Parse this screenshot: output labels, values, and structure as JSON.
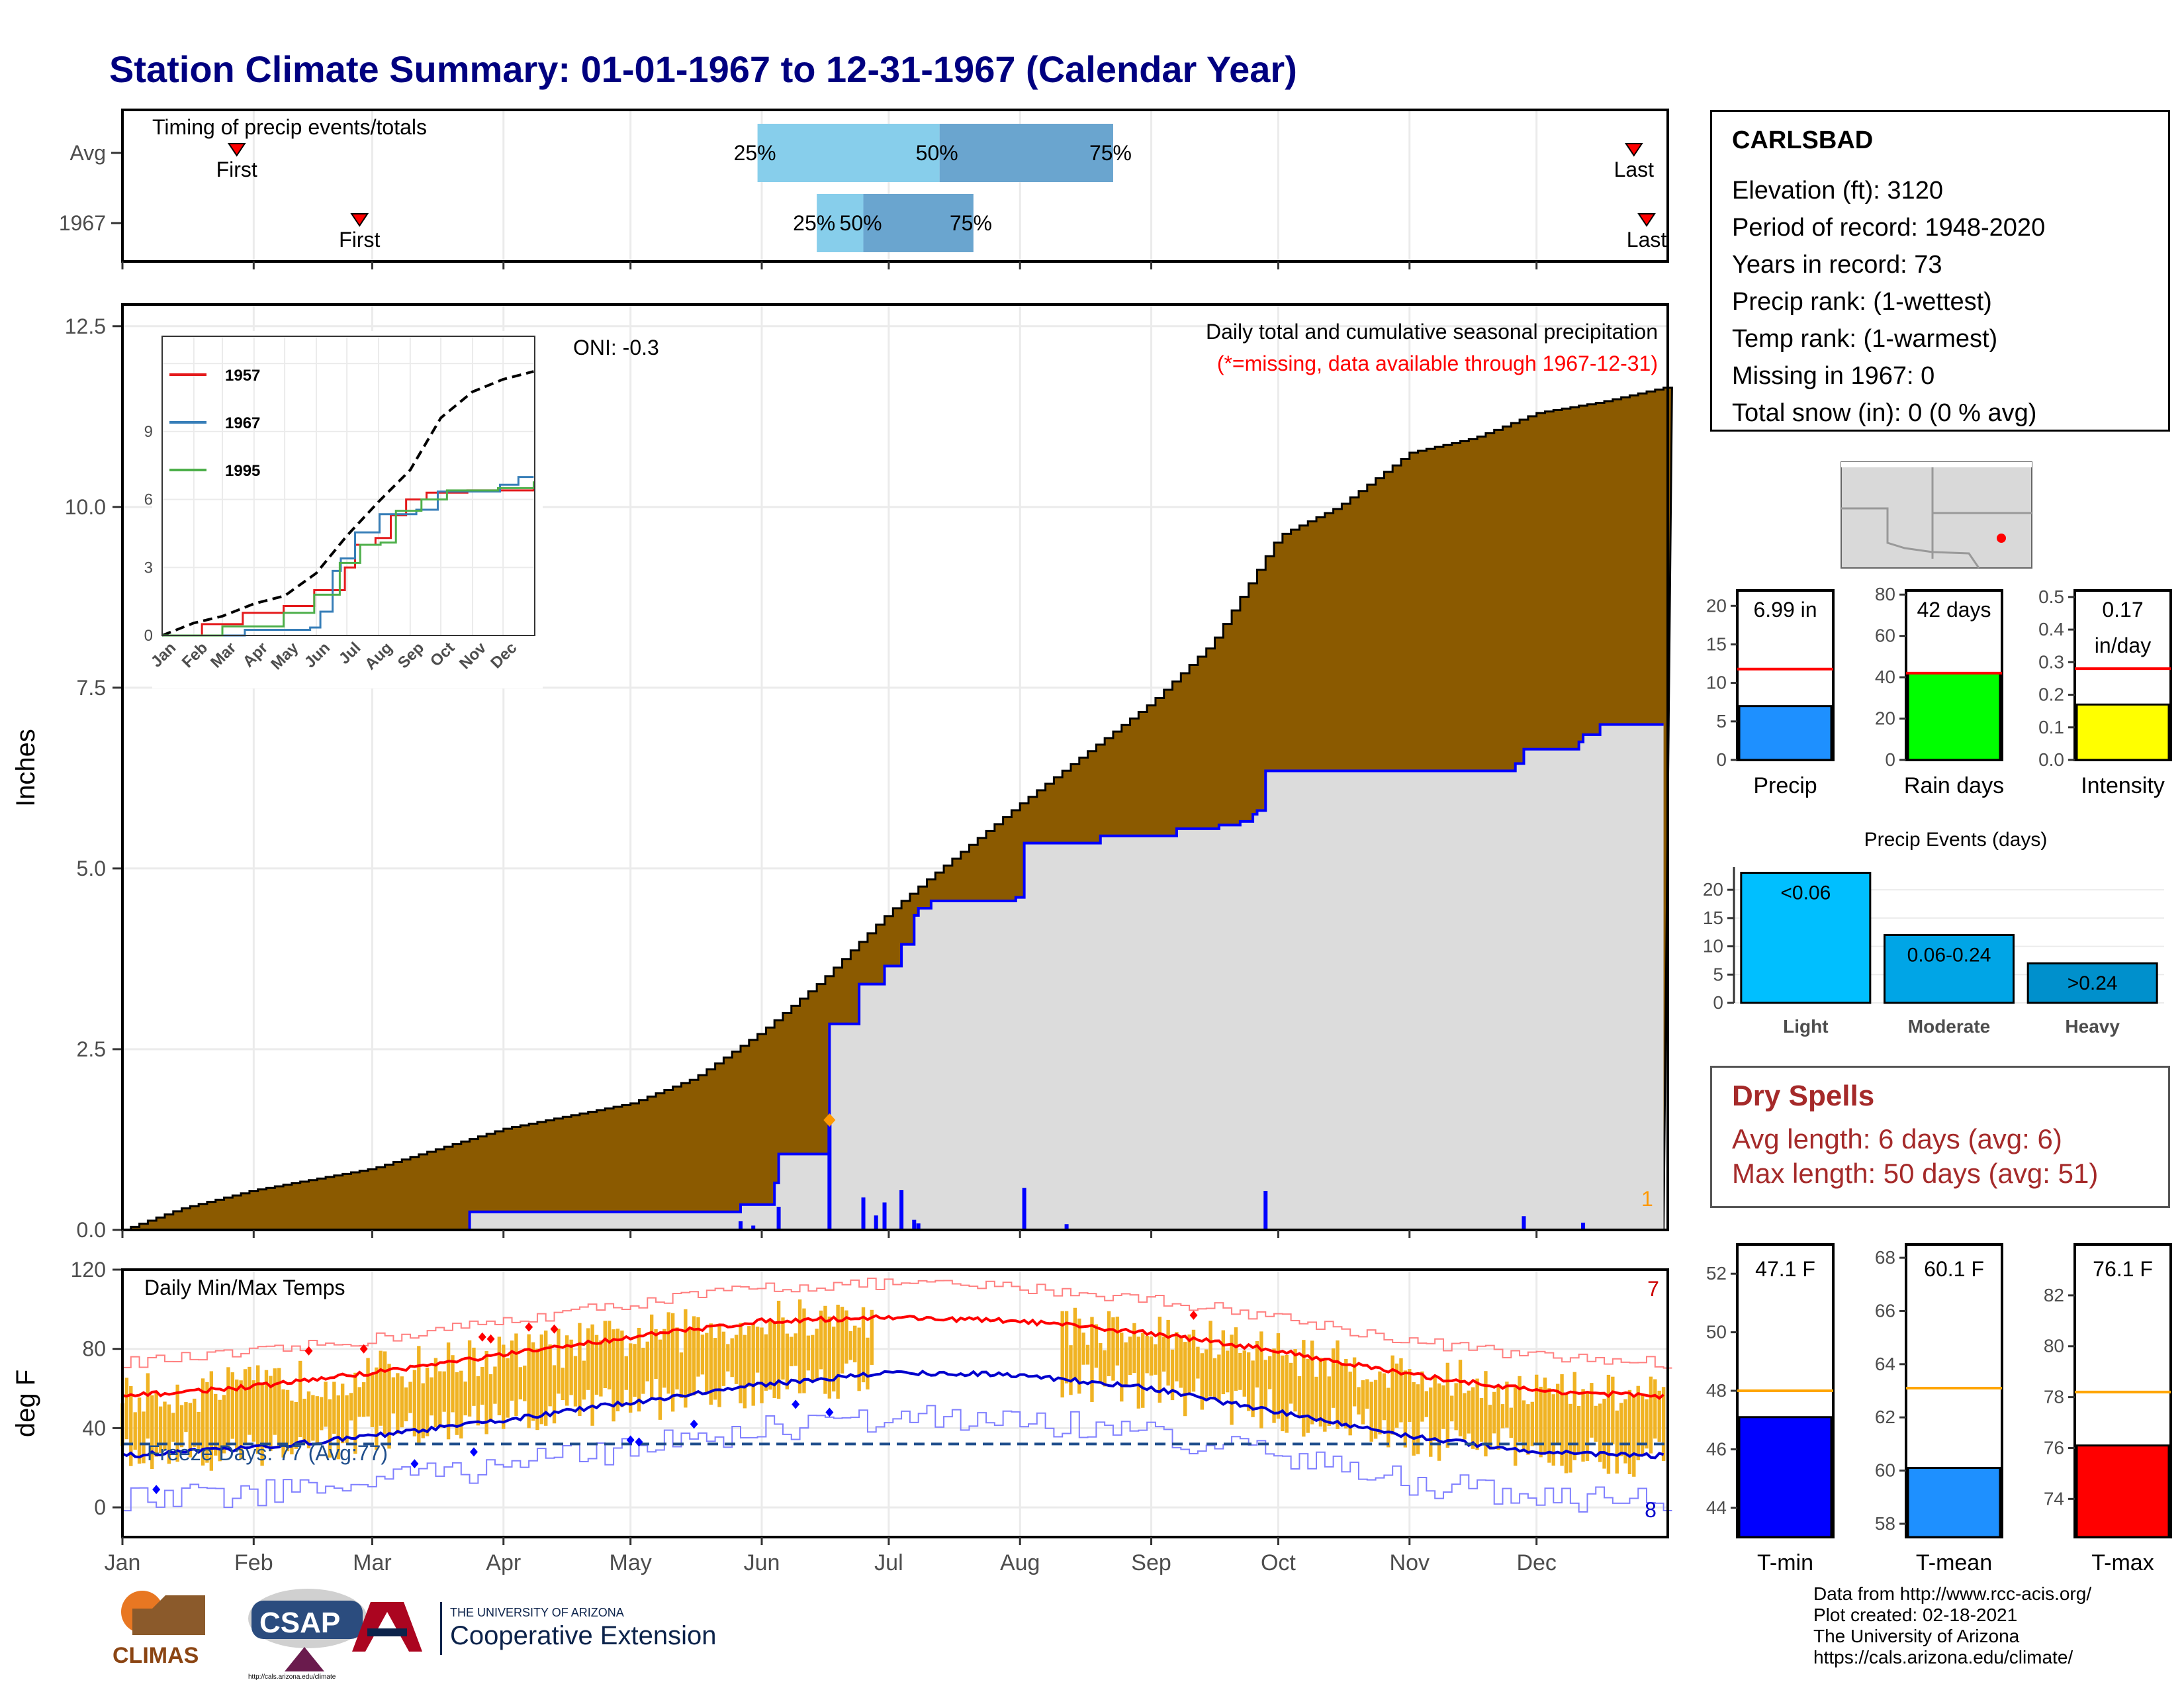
{
  "title": "Station Climate Summary: 01-01-1967 to 12-31-1967 (Calendar Year)",
  "timing_panel": {
    "label": "Timing of precip events/totals",
    "rows": [
      {
        "name": "Avg",
        "first_day": 28,
        "p25_day": 151,
        "p50_day": 194,
        "p75_day": 235,
        "last_day": 358
      },
      {
        "name": "1967",
        "first_day": 57,
        "p25_day": 165,
        "p50_day": 176,
        "p75_day": 202,
        "last_day": 361
      }
    ],
    "marker_labels": {
      "first": "First",
      "last": "Last",
      "p25": "25%",
      "p50": "50%",
      "p75": "75%"
    },
    "colors": {
      "light": "#87ceeb",
      "dark": "#6aa5cf",
      "marker": "#ff0000"
    }
  },
  "precip_panel": {
    "title": "Daily total and cumulative seasonal precipitation",
    "subtitle": "(*=missing, data available through 1967-12-31)",
    "oni": "ONI: -0.3",
    "ylabel": "Inches",
    "missing_count": "1",
    "colors": {
      "avg_fill": "#8b5a00",
      "obs_fill": "#dcdcdc",
      "line": "#0000ff"
    }
  },
  "inset": {
    "yticks": [
      "0",
      "3",
      "6",
      "9"
    ],
    "months": [
      "Jan",
      "Feb",
      "Mar",
      "Apr",
      "May",
      "Jun",
      "Jul",
      "Aug",
      "Sep",
      "Oct",
      "Nov",
      "Dec"
    ],
    "legend": [
      {
        "label": "1957",
        "color": "#e41a1c"
      },
      {
        "label": "1967",
        "color": "#377eb8"
      },
      {
        "label": "1995",
        "color": "#4daf4a"
      }
    ]
  },
  "temp_panel": {
    "title": "Daily Min/Max Temps",
    "ylabel": "deg F",
    "freeze_text": "Freeze Days: 77 (Avg:77)",
    "record_high_count": "7",
    "record_low_count": "8",
    "colors": {
      "bar": "#f0b323",
      "avg_max": "#ff0000",
      "avg_min": "#0000cd",
      "freeze": "#1f4e8c"
    }
  },
  "x_months": [
    "Jan",
    "Feb",
    "Mar",
    "Apr",
    "May",
    "Jun",
    "Jul",
    "Aug",
    "Sep",
    "Oct",
    "Nov",
    "Dec"
  ],
  "station": {
    "name": "CARLSBAD",
    "elevation": "Elevation (ft): 3120",
    "period": "Period of record: 1948-2020",
    "years": "Years in record: 73",
    "precip_rank": "Precip rank:  (1-wettest)",
    "temp_rank": "Temp rank:  (1-warmest)",
    "missing": "Missing in 1967: 0",
    "snow": "Total snow (in): 0 (0 % avg)"
  },
  "summary_bars": [
    {
      "label": "Precip",
      "value_text": "6.99 in",
      "value": 6.99,
      "avg": 11.8,
      "ymax": 22,
      "yticks": [
        "0",
        "5",
        "10",
        "15",
        "20"
      ],
      "color": "#1e90ff"
    },
    {
      "label": "Rain days",
      "value_text": "42 days",
      "value": 42,
      "avg": 42,
      "ymax": 82,
      "yticks": [
        "0",
        "20",
        "40",
        "60",
        "80"
      ],
      "color": "#00ff00"
    },
    {
      "label": "Intensity",
      "value_text": "0.17\nin/day",
      "value": 0.17,
      "avg": 0.28,
      "ymax": 0.52,
      "yticks": [
        "0.0",
        "0.1",
        "0.2",
        "0.3",
        "0.4",
        "0.5"
      ],
      "color": "#ffff00"
    }
  ],
  "precip_events": {
    "title": "Precip Events (days)",
    "categories": [
      "Light",
      "Moderate",
      "Heavy"
    ],
    "bar_labels": [
      "<0.06",
      "0.06-0.24",
      ">0.24"
    ],
    "values": [
      23,
      12,
      7
    ],
    "yticks": [
      "0",
      "5",
      "10",
      "15",
      "20"
    ],
    "colors": [
      "#00bfff",
      "#00a5e6",
      "#0090cc"
    ]
  },
  "dry_spells": {
    "title": "Dry Spells",
    "avg": "Avg length: 6 days (avg: 6)",
    "max": "Max length: 50 days (avg: 51)"
  },
  "temp_bars": [
    {
      "label": "T-min",
      "value_text": "47.1 F",
      "value": 47.1,
      "avg": 48.0,
      "ymin": 43,
      "ymax": 53,
      "yticks": [
        "44",
        "46",
        "48",
        "50",
        "52"
      ],
      "color": "#0000ff"
    },
    {
      "label": "T-mean",
      "value_text": "60.1 F",
      "value": 60.1,
      "avg": 63.1,
      "ymin": 57.5,
      "ymax": 68.5,
      "yticks": [
        "58",
        "60",
        "62",
        "64",
        "66",
        "68"
      ],
      "color": "#1e90ff"
    },
    {
      "label": "T-max",
      "value_text": "76.1 F",
      "value": 76.1,
      "avg": 78.2,
      "ymin": 72.5,
      "ymax": 84,
      "yticks": [
        "74",
        "76",
        "78",
        "80",
        "82"
      ],
      "color": "#ff0000"
    }
  ],
  "source": [
    "Data from http://www.rcc-acis.org/",
    "Plot created: 02-18-2021",
    "The University of Arizona",
    "https://cals.arizona.edu/climate/"
  ],
  "logos": {
    "climas": "CLIMAS",
    "csap": "CSAP",
    "csap_url": "http://cals.arizona.edu/climate",
    "ua_small": "THE UNIVERSITY OF ARIZONA",
    "ua_big": "Cooperative Extension"
  },
  "chart_data": {
    "type": "area",
    "title": "Daily total and cumulative seasonal precipitation",
    "ylabel": "Inches",
    "ylim": [
      0,
      12.8
    ],
    "yticks": [
      0,
      2.5,
      5,
      7.5,
      10,
      12.5
    ],
    "x_unit": "day of year",
    "series": [
      {
        "name": "",
        "x": [
          1,
          15,
          32,
          60,
          91,
          121,
          136,
          152,
          166,
          182,
          190,
          213,
          244,
          258,
          274,
          288,
          305,
          320,
          335,
          350,
          365
        ],
        "values": [
          0.0,
          0.3,
          0.55,
          0.85,
          1.4,
          1.75,
          2.1,
          2.75,
          3.45,
          4.4,
          4.8,
          5.9,
          7.3,
          8.1,
          9.6,
          10.0,
          10.75,
          10.95,
          11.3,
          11.45,
          11.65
        ]
      },
      {
        "name": "",
        "x": [
          1,
          82,
          83,
          146,
          147,
          155,
          156,
          167,
          168,
          175,
          176,
          181,
          185,
          188,
          189,
          192,
          212,
          214,
          232,
          250,
          260,
          265,
          268,
          269,
          271,
          330,
          332,
          345,
          346,
          350,
          365
        ],
        "values": [
          0.0,
          0.0,
          0.25,
          0.25,
          0.35,
          0.65,
          1.05,
          1.05,
          2.85,
          3.4,
          3.4,
          3.65,
          3.95,
          4.35,
          4.45,
          4.55,
          4.6,
          5.35,
          5.45,
          5.55,
          5.6,
          5.65,
          5.75,
          5.8,
          6.35,
          6.45,
          6.65,
          6.75,
          6.85,
          6.99,
          6.99
        ]
      }
    ],
    "daily_precip": [
      {
        "day": 147,
        "value": 0.12
      },
      {
        "day": 150,
        "value": 0.06
      },
      {
        "day": 156,
        "value": 0.32
      },
      {
        "day": 168,
        "value": 1.52
      },
      {
        "day": 176,
        "value": 0.45
      },
      {
        "day": 179,
        "value": 0.2
      },
      {
        "day": 181,
        "value": 0.38
      },
      {
        "day": 185,
        "value": 0.55
      },
      {
        "day": 188,
        "value": 0.14
      },
      {
        "day": 189,
        "value": 0.09
      },
      {
        "day": 214,
        "value": 0.58
      },
      {
        "day": 224,
        "value": 0.08
      },
      {
        "day": 271,
        "value": 0.54
      },
      {
        "day": 332,
        "value": 0.19
      },
      {
        "day": 346,
        "value": 0.1
      }
    ],
    "inset": {
      "type": "line",
      "ylim": [
        0,
        13.2
      ],
      "series": [
        {
          "name": "",
          "style": "dashed",
          "x": [
            1,
            32,
            60,
            91,
            121,
            152,
            182,
            213,
            244,
            274,
            305,
            335,
            365
          ],
          "values": [
            0,
            0.55,
            0.85,
            1.4,
            1.75,
            2.75,
            4.4,
            5.9,
            7.3,
            9.6,
            10.75,
            11.3,
            11.65
          ]
        },
        {
          "name": "1957",
          "x": [
            1,
            40,
            80,
            120,
            150,
            180,
            190,
            210,
            225,
            240,
            260,
            300,
            365
          ],
          "values": [
            0,
            0.5,
            1.0,
            1.3,
            2.0,
            3.0,
            4.0,
            4.3,
            5.3,
            6.0,
            6.3,
            6.4,
            6.5
          ]
        },
        {
          "name": "1967",
          "x": [
            1,
            82,
            146,
            156,
            168,
            176,
            190,
            214,
            250,
            271,
            332,
            350,
            365
          ],
          "values": [
            0,
            0.25,
            0.35,
            1.05,
            2.85,
            3.4,
            4.55,
            5.35,
            5.55,
            6.35,
            6.65,
            6.99,
            6.99
          ]
        },
        {
          "name": "1995",
          "x": [
            1,
            60,
            120,
            150,
            175,
            195,
            215,
            230,
            255,
            280,
            330,
            365
          ],
          "values": [
            0,
            0.4,
            1.0,
            1.8,
            3.2,
            4.0,
            4.1,
            5.5,
            6.0,
            6.4,
            6.5,
            6.8
          ]
        }
      ]
    },
    "temperature": {
      "ylim": [
        -15,
        120
      ],
      "yticks": [
        0,
        40,
        80,
        120
      ],
      "avg_max": {
        "x": [
          1,
          32,
          60,
          91,
          121,
          152,
          182,
          213,
          244,
          274,
          305,
          335,
          365
        ],
        "values": [
          56,
          61,
          68,
          77,
          86,
          94,
          96,
          94,
          88,
          79,
          67,
          59,
          56
        ]
      },
      "avg_min": {
        "x": [
          1,
          32,
          60,
          91,
          121,
          152,
          182,
          213,
          244,
          274,
          305,
          335,
          365
        ],
        "values": [
          26,
          30,
          36,
          44,
          53,
          62,
          68,
          67,
          60,
          48,
          36,
          28,
          26
        ]
      },
      "freeze_line": 32,
      "missing_range": [
        179,
        222
      ]
    }
  }
}
